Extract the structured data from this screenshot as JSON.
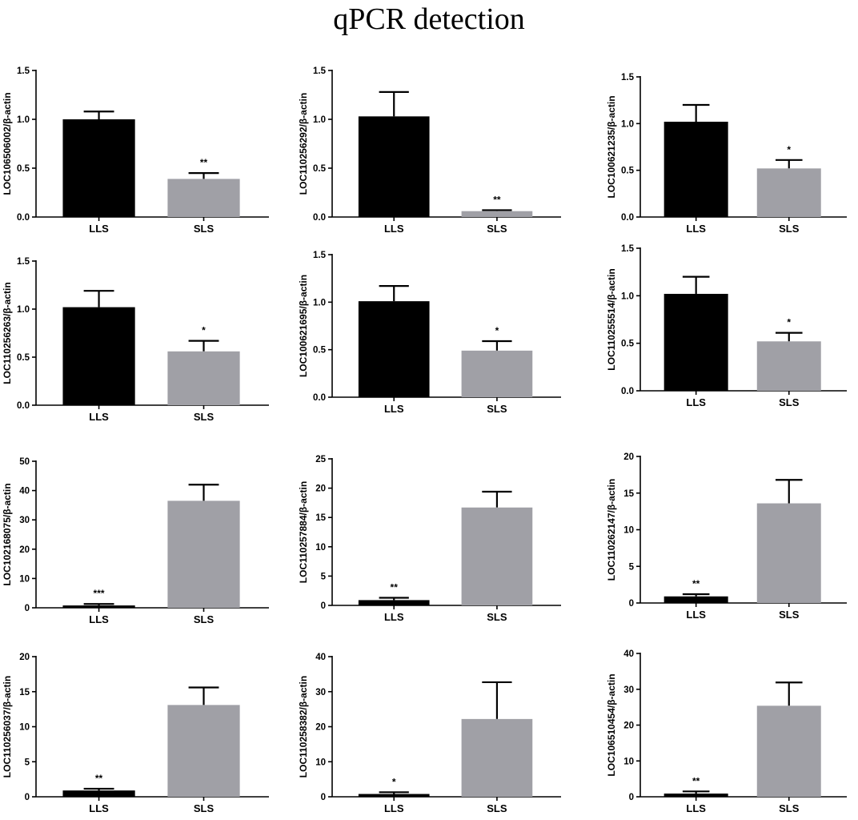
{
  "figure_title": "qPCR detection",
  "colors": {
    "LLS": "#000000",
    "SLS": "#a0a0a6",
    "axis": "#000000"
  },
  "chart_data": [
    {
      "type": "bar",
      "ylabel": "LOC106506002/β-actin",
      "categories": [
        "LLS",
        "SLS"
      ],
      "values": [
        1.0,
        0.39
      ],
      "errors": [
        0.08,
        0.06
      ],
      "ylim": [
        0,
        1.5
      ],
      "yticks": [
        0,
        0.5,
        1.0,
        1.5
      ],
      "tick_labels": [
        "0.0",
        "0.5",
        "1.0",
        "1.5"
      ],
      "significance": [
        "",
        "**"
      ]
    },
    {
      "type": "bar",
      "ylabel": "LOC110256292/β-actin",
      "categories": [
        "LLS",
        "SLS"
      ],
      "values": [
        1.03,
        0.06
      ],
      "errors": [
        0.25,
        0.01
      ],
      "ylim": [
        0,
        1.5
      ],
      "yticks": [
        0,
        0.5,
        1.0,
        1.5
      ],
      "tick_labels": [
        "0.0",
        "0.5",
        "1.0",
        "1.5"
      ],
      "significance": [
        "",
        "**"
      ]
    },
    {
      "type": "bar",
      "ylabel": "LOC100621235/β-actin",
      "categories": [
        "LLS",
        "SLS"
      ],
      "values": [
        1.02,
        0.52
      ],
      "errors": [
        0.18,
        0.09
      ],
      "ylim": [
        0,
        1.5
      ],
      "yticks": [
        0,
        0.5,
        1.0,
        1.5
      ],
      "tick_labels": [
        "0.0",
        "0.5",
        "1.0",
        "1.5"
      ],
      "significance": [
        "",
        "*"
      ]
    },
    {
      "type": "bar",
      "ylabel": "LOC110256263/β-actin",
      "categories": [
        "LLS",
        "SLS"
      ],
      "values": [
        1.02,
        0.56
      ],
      "errors": [
        0.17,
        0.11
      ],
      "ylim": [
        0,
        1.5
      ],
      "yticks": [
        0,
        0.5,
        1.0,
        1.5
      ],
      "tick_labels": [
        "0.0",
        "0.5",
        "1.0",
        "1.5"
      ],
      "significance": [
        "",
        "*"
      ]
    },
    {
      "type": "bar",
      "ylabel": "LOC100621695/β-actin",
      "categories": [
        "LLS",
        "SLS"
      ],
      "values": [
        1.01,
        0.49
      ],
      "errors": [
        0.16,
        0.1
      ],
      "ylim": [
        0,
        1.5
      ],
      "yticks": [
        0,
        0.5,
        1.0,
        1.5
      ],
      "tick_labels": [
        "0.0",
        "0.5",
        "1.0",
        "1.5"
      ],
      "significance": [
        "",
        "*"
      ]
    },
    {
      "type": "bar",
      "ylabel": "LOC110255514/β-actin",
      "categories": [
        "LLS",
        "SLS"
      ],
      "values": [
        1.02,
        0.52
      ],
      "errors": [
        0.18,
        0.09
      ],
      "ylim": [
        0,
        1.5
      ],
      "yticks": [
        0,
        0.5,
        1.0,
        1.5
      ],
      "tick_labels": [
        "0.0",
        "0.5",
        "1.0",
        "1.5"
      ],
      "significance": [
        "",
        "*"
      ]
    },
    {
      "type": "bar",
      "ylabel": "LOC102168075/β-actin",
      "categories": [
        "LLS",
        "SLS"
      ],
      "values": [
        0.8,
        36.5
      ],
      "errors": [
        0.5,
        5.5
      ],
      "ylim": [
        0,
        50
      ],
      "yticks": [
        0,
        10,
        20,
        30,
        40,
        50
      ],
      "tick_labels": [
        "0",
        "10",
        "20",
        "30",
        "40",
        "50"
      ],
      "significance": [
        "***",
        ""
      ]
    },
    {
      "type": "bar",
      "ylabel": "LOC110257884/β-actin",
      "categories": [
        "LLS",
        "SLS"
      ],
      "values": [
        0.9,
        16.7
      ],
      "errors": [
        0.4,
        2.7
      ],
      "ylim": [
        0,
        25
      ],
      "yticks": [
        0,
        5,
        10,
        15,
        20,
        25
      ],
      "tick_labels": [
        "0",
        "5",
        "10",
        "15",
        "20",
        "25"
      ],
      "significance": [
        "**",
        ""
      ]
    },
    {
      "type": "bar",
      "ylabel": "LOC110262147/β-actin",
      "categories": [
        "LLS",
        "SLS"
      ],
      "values": [
        0.9,
        13.6
      ],
      "errors": [
        0.3,
        3.2
      ],
      "ylim": [
        0,
        20
      ],
      "yticks": [
        0,
        5,
        10,
        15,
        20
      ],
      "tick_labels": [
        "0",
        "5",
        "10",
        "15",
        "20"
      ],
      "significance": [
        "**",
        ""
      ]
    },
    {
      "type": "bar",
      "ylabel": "LOC110256037/β-actin",
      "categories": [
        "LLS",
        "SLS"
      ],
      "values": [
        0.9,
        13.1
      ],
      "errors": [
        0.25,
        2.5
      ],
      "ylim": [
        0,
        20
      ],
      "yticks": [
        0,
        5,
        10,
        15,
        20
      ],
      "tick_labels": [
        "0",
        "5",
        "10",
        "15",
        "20"
      ],
      "significance": [
        "**",
        ""
      ]
    },
    {
      "type": "bar",
      "ylabel": "LOC110258382/β-actin",
      "categories": [
        "LLS",
        "SLS"
      ],
      "values": [
        0.8,
        22.2
      ],
      "errors": [
        0.5,
        10.5
      ],
      "ylim": [
        0,
        40
      ],
      "yticks": [
        0,
        10,
        20,
        30,
        40
      ],
      "tick_labels": [
        "0",
        "10",
        "20",
        "30",
        "40"
      ],
      "significance": [
        "*",
        ""
      ]
    },
    {
      "type": "bar",
      "ylabel": "LOC106510454/β-actin",
      "categories": [
        "LLS",
        "SLS"
      ],
      "values": [
        0.9,
        25.4
      ],
      "errors": [
        0.6,
        6.5
      ],
      "ylim": [
        0,
        40
      ],
      "yticks": [
        0,
        10,
        20,
        30,
        40
      ],
      "tick_labels": [
        "0",
        "10",
        "20",
        "30",
        "40"
      ],
      "significance": [
        "**",
        ""
      ]
    }
  ]
}
